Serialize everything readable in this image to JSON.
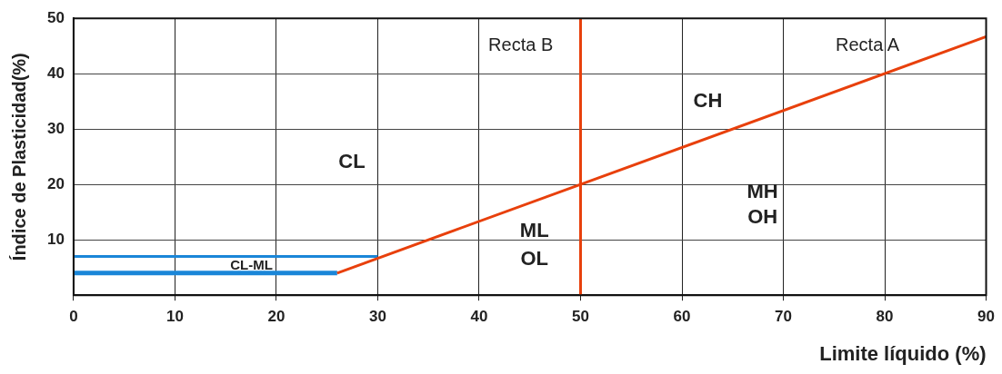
{
  "chart_data": {
    "type": "line",
    "xlabel": "Limite líquido (%)",
    "ylabel": "Índice de Plasticidad(%)",
    "xlim": [
      0,
      90
    ],
    "xticks": [
      0,
      10,
      20,
      30,
      40,
      50,
      60,
      70,
      80,
      90
    ],
    "ylim": [
      0,
      50
    ],
    "yticks": [
      10,
      20,
      30,
      40,
      50
    ],
    "grid": true,
    "legend": false,
    "marker": "none",
    "line_style": "solid",
    "series": [
      {
        "color": "#e8400c",
        "x": [
          26,
          90
        ],
        "values": [
          4,
          46.7
        ]
      },
      {
        "color": "#e8400c",
        "x": [
          50,
          50
        ],
        "values": [
          0,
          50
        ]
      },
      {
        "color": "#1a86d8",
        "x": [
          0,
          30
        ],
        "values": [
          7,
          7
        ]
      },
      {
        "color": "#1a86d8",
        "x": [
          0,
          26
        ],
        "values": [
          4,
          4
        ]
      }
    ],
    "annotations": [
      "Recta B",
      "Recta A",
      "CH",
      "CL",
      "MH",
      "OH",
      "ML",
      "OL",
      "CL-ML"
    ]
  }
}
